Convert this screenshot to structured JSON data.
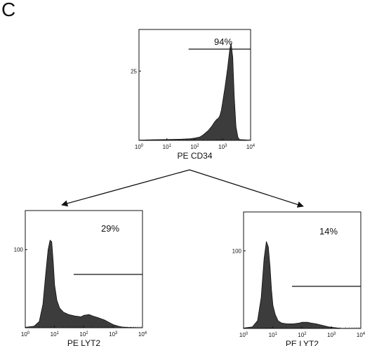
{
  "figure": {
    "panel_letter": "C"
  },
  "colors": {
    "fill": "#3c3c3c",
    "stroke": "#111111",
    "background": "#ffffff"
  },
  "chart_data": [
    {
      "id": "top",
      "type": "area",
      "xscale": "log",
      "xlim": [
        1,
        10000
      ],
      "ylim": [
        0,
        40
      ],
      "xticks": [
        1,
        10,
        100,
        1000,
        10000
      ],
      "xtick_labels": [
        "10^0",
        "10^1",
        "10^2",
        "10^3",
        "10^4"
      ],
      "yticks": [
        25
      ],
      "ytick_labels": [
        "25"
      ],
      "xlabel": "PE CD34",
      "gate": {
        "x": [
          60,
          10000
        ],
        "y": 35,
        "label": "94%"
      },
      "x": [
        1,
        3,
        10,
        30,
        70,
        100,
        150,
        200,
        300,
        400,
        500,
        600,
        700,
        800,
        900,
        1000,
        1200,
        1500,
        1800,
        2000,
        2300,
        2600,
        3000,
        3500,
        4000,
        10000
      ],
      "y": [
        0.1,
        0.2,
        0.3,
        0.4,
        0.6,
        0.8,
        1.2,
        2,
        3.5,
        5,
        6.5,
        7.5,
        8,
        9,
        11,
        14,
        19,
        26,
        33,
        35,
        30,
        16,
        5,
        1.2,
        0.3,
        0
      ]
    },
    {
      "id": "bottom-left",
      "type": "area",
      "xscale": "log",
      "xlim": [
        1,
        10000
      ],
      "ylim": [
        0,
        150
      ],
      "xticks": [
        1,
        10,
        100,
        1000,
        10000
      ],
      "xtick_labels": [
        "10^0",
        "10^1",
        "10^2",
        "10^3",
        "10^4"
      ],
      "yticks": [
        100
      ],
      "ytick_labels": [
        "100"
      ],
      "xlabel": "PE LYT2",
      "gate": {
        "x": [
          45,
          10000
        ],
        "y": 75,
        "label": "29%"
      },
      "x": [
        1,
        2,
        3,
        4,
        5,
        6,
        7,
        8,
        9,
        10,
        12,
        15,
        20,
        30,
        50,
        80,
        100,
        150,
        200,
        300,
        500,
        800,
        1000,
        1500,
        2000,
        3000,
        10000
      ],
      "y": [
        0.5,
        2,
        8,
        30,
        70,
        100,
        112,
        110,
        85,
        55,
        35,
        25,
        20,
        17,
        15,
        14,
        16,
        17,
        15,
        13,
        10,
        6,
        4,
        2,
        1,
        0.5,
        0
      ]
    },
    {
      "id": "bottom-right",
      "type": "area",
      "xscale": "log",
      "xlim": [
        1,
        10000
      ],
      "ylim": [
        0,
        150
      ],
      "xticks": [
        1,
        10,
        100,
        1000,
        10000
      ],
      "xtick_labels": [
        "10^0",
        "10^1",
        "10^2",
        "10^3",
        "10^4"
      ],
      "yticks": [
        100
      ],
      "ytick_labels": [
        "100"
      ],
      "xlabel": "PE LYT2",
      "gate": {
        "x": [
          45,
          10000
        ],
        "y": 50,
        "label": "14%"
      },
      "x": [
        1,
        2,
        3,
        4,
        5,
        6,
        7,
        8,
        9,
        10,
        12,
        15,
        20,
        30,
        50,
        80,
        100,
        150,
        200,
        300,
        500,
        800,
        1000,
        1500,
        2000,
        3000,
        10000
      ],
      "y": [
        0.5,
        2,
        10,
        40,
        90,
        112,
        105,
        80,
        50,
        30,
        18,
        10,
        7,
        6,
        6,
        7,
        8,
        8,
        7,
        6,
        4,
        2,
        1.5,
        0.8,
        0.4,
        0.2,
        0
      ]
    }
  ]
}
